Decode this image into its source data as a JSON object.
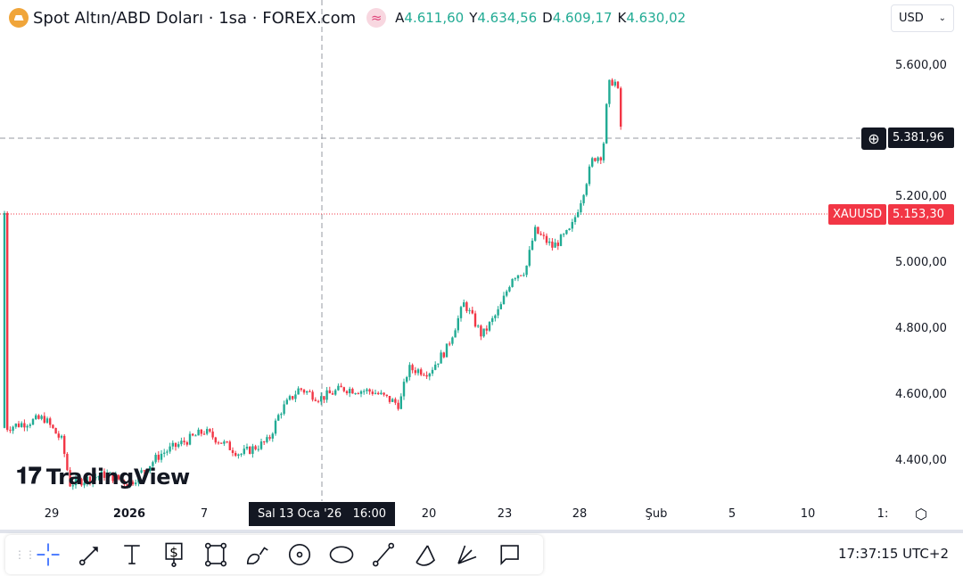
{
  "header": {
    "title": "Spot Altın/ABD Doları · 1sa · FOREX.com",
    "ohlc": [
      {
        "k": "A",
        "v": "4.611,60"
      },
      {
        "k": "Y",
        "v": "4.634,56"
      },
      {
        "k": "D",
        "v": "4.609,17"
      },
      {
        "k": "K",
        "v": "4.630,02"
      }
    ],
    "currency": "USD"
  },
  "watermark": "TradingView",
  "price_axis": [
    "5.600,00",
    "5.200,00",
    "5.000,00",
    "4.800,00",
    "4.600,00",
    "4.400,00"
  ],
  "crosshair": {
    "price": "5.381,96",
    "time": "Sal 13 Oca '26   16:00"
  },
  "last_price": {
    "symbol": "XAUUSD",
    "value": "5.153,30",
    "color": "#f23645"
  },
  "time_axis": [
    {
      "l": "29",
      "d": 0
    },
    {
      "l": "2026",
      "d": 3
    },
    {
      "l": "7",
      "d": 9
    },
    {
      "l": "20",
      "d": 22
    },
    {
      "l": "23",
      "d": 25
    },
    {
      "l": "28",
      "d": 30
    },
    {
      "l": "Şub",
      "d": 34
    },
    {
      "l": "5",
      "d": 38
    },
    {
      "l": "10",
      "d": 43
    },
    {
      "l": "1:",
      "d": 47
    }
  ],
  "toolbar": [
    "crosshair",
    "trend-line",
    "text",
    "price-label",
    "rectangle",
    "brush",
    "circle",
    "ellipse",
    "line",
    "arc",
    "fib-fan",
    "callout"
  ],
  "clock": "17:37:15 UTC+2",
  "chart_data": {
    "type": "candlestick",
    "symbol": "XAUUSD",
    "interval": "1h",
    "ylim": [
      4300,
      5650
    ],
    "up_color": "#22ab94",
    "down_color": "#f23645",
    "path": [
      [
        -1.8,
        4500
      ],
      [
        -0.3,
        4530
      ],
      [
        0.4,
        4460
      ],
      [
        0.7,
        4330
      ],
      [
        2.1,
        4360
      ],
      [
        3,
        4330
      ],
      [
        5.5,
        4420
      ],
      [
        9,
        4490
      ],
      [
        11.1,
        4420
      ],
      [
        12.7,
        4460
      ],
      [
        13.4,
        4550
      ],
      [
        14.5,
        4620
      ],
      [
        15.7,
        4590
      ],
      [
        17,
        4620
      ],
      [
        18.8,
        4610
      ],
      [
        20.3,
        4570
      ],
      [
        20.8,
        4680
      ],
      [
        22,
        4670
      ],
      [
        22.7,
        4740
      ],
      [
        23.4,
        4880
      ],
      [
        24.1,
        4780
      ],
      [
        24.8,
        4860
      ],
      [
        25.5,
        4960
      ],
      [
        26.4,
        4980
      ],
      [
        27,
        5100
      ],
      [
        28.2,
        5050
      ],
      [
        29.4,
        5100
      ],
      [
        30.1,
        5200
      ],
      [
        30.7,
        5320
      ],
      [
        31.2,
        5330
      ],
      [
        31.5,
        5540
      ],
      [
        31.8,
        5560
      ],
      [
        32.1,
        5500
      ],
      [
        32.3,
        5153.3
      ]
    ]
  }
}
